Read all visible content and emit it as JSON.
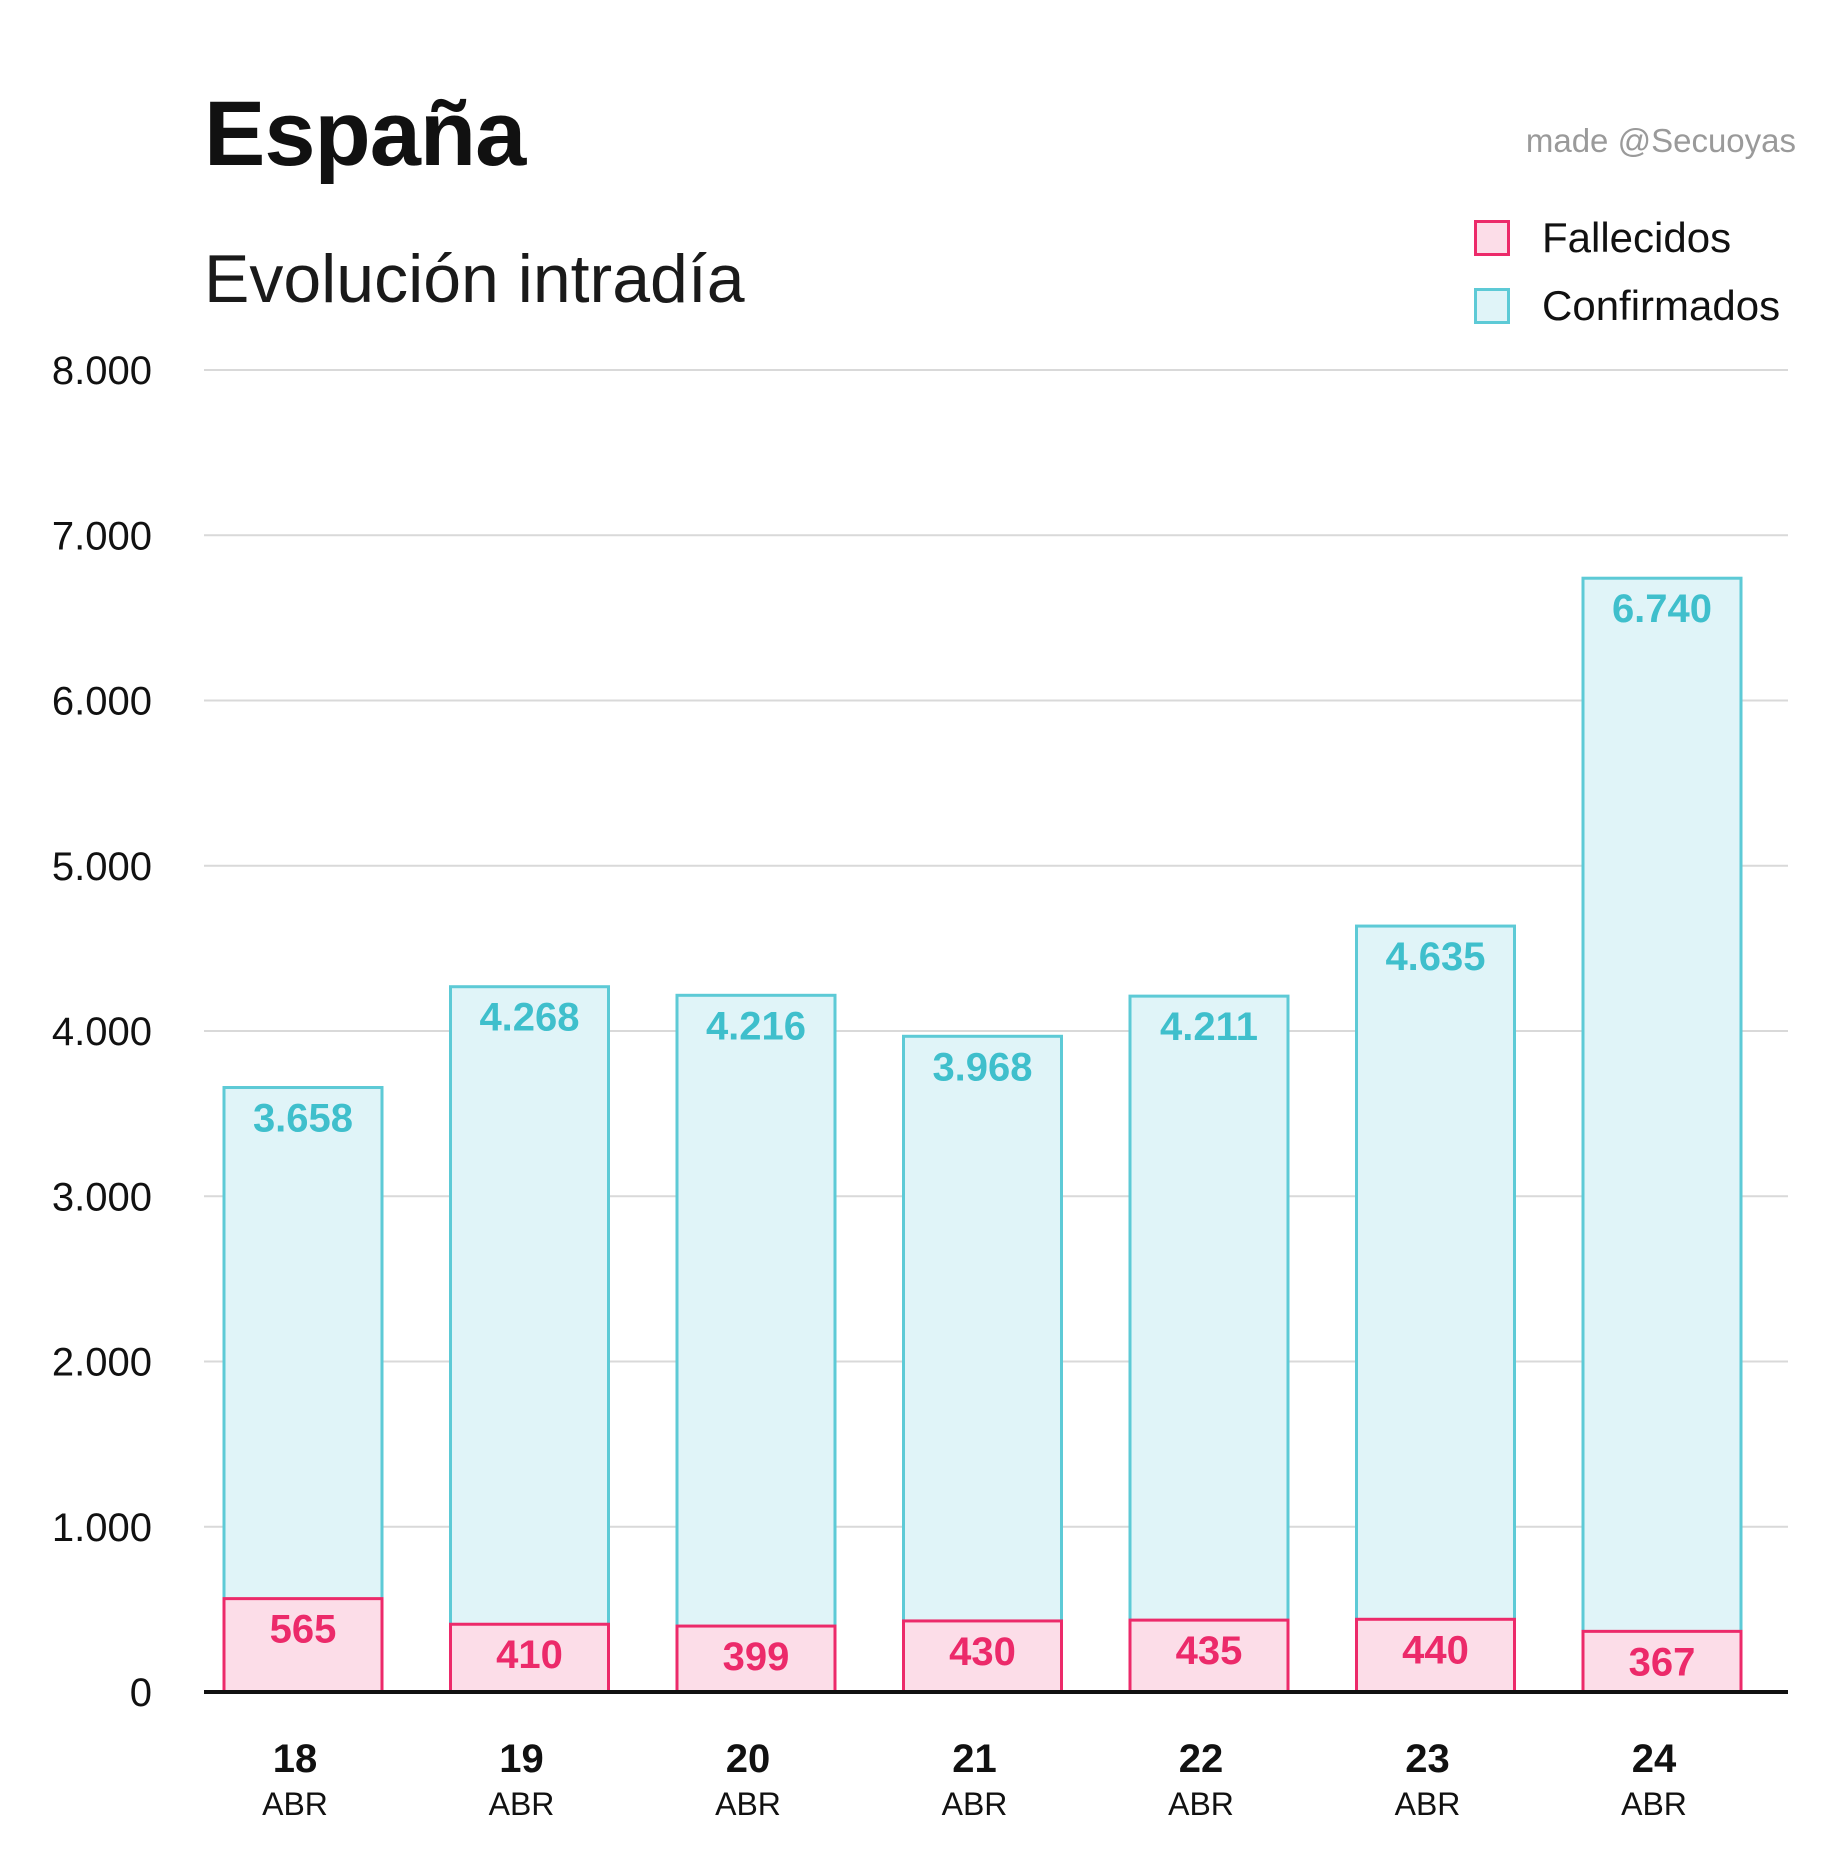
{
  "title": "España",
  "subtitle": "Evolución intradía",
  "credit": "made @Secuoyas",
  "colors": {
    "fallecidos_fill": "#fcdde8",
    "fallecidos_stroke": "#ec2a6a",
    "fallecidos_text": "#ec2a6a",
    "confirmados_fill": "#e0f4f8",
    "confirmados_stroke": "#5dcad6",
    "confirmados_text": "#3fbfcc",
    "grid": "#d9d9d9",
    "axis": "#111111"
  },
  "legend": [
    {
      "label": "Fallecidos",
      "series": "fallecidos"
    },
    {
      "label": "Confirmados",
      "series": "confirmados"
    }
  ],
  "chart_data": {
    "type": "bar",
    "layout": "overlapping",
    "categories": [
      {
        "day": "18",
        "month": "ABR"
      },
      {
        "day": "19",
        "month": "ABR"
      },
      {
        "day": "20",
        "month": "ABR"
      },
      {
        "day": "21",
        "month": "ABR"
      },
      {
        "day": "22",
        "month": "ABR"
      },
      {
        "day": "23",
        "month": "ABR"
      },
      {
        "day": "24",
        "month": "ABR"
      }
    ],
    "series": [
      {
        "name": "Confirmados",
        "key": "confirmados",
        "values": [
          3658,
          4268,
          4216,
          3968,
          4211,
          4635,
          6740
        ],
        "labels": [
          "3.658",
          "4.268",
          "4.216",
          "3.968",
          "4.211",
          "4.635",
          "6.740"
        ]
      },
      {
        "name": "Fallecidos",
        "key": "fallecidos",
        "values": [
          565,
          410,
          399,
          430,
          435,
          440,
          367
        ],
        "labels": [
          "565",
          "410",
          "399",
          "430",
          "435",
          "440",
          "367"
        ]
      }
    ],
    "ylim": [
      0,
      8000
    ],
    "yticks": [
      0,
      1000,
      2000,
      3000,
      4000,
      5000,
      6000,
      7000,
      8000
    ],
    "ytick_labels": [
      "0",
      "1.000",
      "2.000",
      "3.000",
      "4.000",
      "5.000",
      "6.000",
      "7.000",
      "8.000"
    ],
    "grid": true,
    "legend_position": "top-right",
    "xlabel": "",
    "ylabel": ""
  }
}
